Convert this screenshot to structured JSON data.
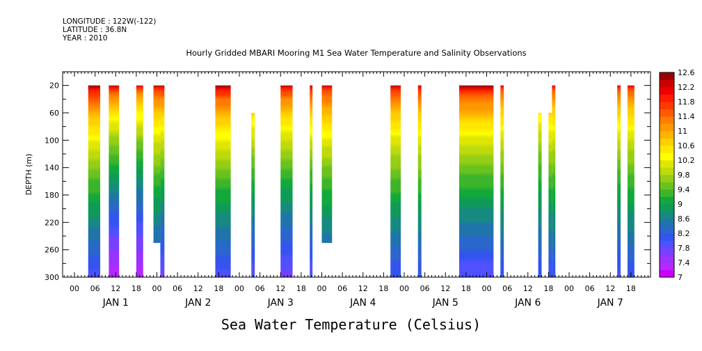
{
  "header": {
    "longitude": "LONGITUDE : 122W(-122)",
    "latitude": "LATITUDE : 36.8N",
    "year": "YEAR : 2010"
  },
  "title": "Hourly Gridded MBARI Mooring M1 Sea Water Temperature and Salinity Observations",
  "subtitle": "Sea Water Temperature (Celsius)",
  "chart_data": {
    "type": "heatmap",
    "ylabel": "DEPTH (m)",
    "ylim": [
      300,
      0
    ],
    "y_ticks": [
      20,
      60,
      100,
      140,
      180,
      220,
      260,
      300
    ],
    "x_unit": "hours since JAN 1 00:00",
    "xlim": [
      -2,
      143
    ],
    "x_tick_labels": [
      "00",
      "06",
      "12",
      "18",
      "00",
      "06",
      "12",
      "18",
      "00",
      "06",
      "12",
      "18",
      "00",
      "06",
      "12",
      "18",
      "00",
      "06",
      "12",
      "18",
      "00",
      "06",
      "12",
      "18",
      "00",
      "06",
      "12",
      "18"
    ],
    "x_day_labels": [
      "JAN  1",
      "JAN  2",
      "JAN  3",
      "JAN  4",
      "JAN  5",
      "JAN  6",
      "JAN  7"
    ],
    "colorbar": {
      "levels": [
        7,
        7.2,
        7.4,
        7.6,
        7.8,
        8,
        8.2,
        8.4,
        8.6,
        8.8,
        9,
        9.2,
        9.4,
        9.6,
        9.8,
        10,
        10.2,
        10.4,
        10.6,
        10.8,
        11,
        11.2,
        11.4,
        11.6,
        11.8,
        12,
        12.2,
        12.4,
        12.6
      ],
      "labels": [
        "12.6",
        "12.2",
        "11.8",
        "11.4",
        "11",
        "10.6",
        "10.2",
        "9.8",
        "9.4",
        "9",
        "8.6",
        "8.2",
        "7.8",
        "7.4",
        "7"
      ],
      "colors": [
        "#cc00ff",
        "#b429ff",
        "#9933ff",
        "#7a40ff",
        "#5050ff",
        "#3355ee",
        "#2a66cc",
        "#1f75aa",
        "#168a80",
        "#0f9a58",
        "#12a83c",
        "#3cb52a",
        "#6ac21e",
        "#95ce14",
        "#bdda0c",
        "#e0e604",
        "#ffff00",
        "#ffe800",
        "#ffd000",
        "#ffb400",
        "#ff9800",
        "#ff7c00",
        "#ff5a00",
        "#ff3800",
        "#ff1a00",
        "#ee0000",
        "#cc0000",
        "#990000"
      ]
    },
    "series": [
      {
        "x_start": 4,
        "x_end": 7.5,
        "depth_top": 20,
        "depth_bottom": 300,
        "t_surface": 12.6,
        "t_bottom": 7.9
      },
      {
        "x_start": 10,
        "x_end": 13,
        "depth_top": 20,
        "depth_bottom": 300,
        "t_surface": 12.3,
        "t_bottom": 7.2
      },
      {
        "x_start": 18,
        "x_end": 20,
        "depth_top": 20,
        "depth_bottom": 300,
        "t_surface": 12.1,
        "t_bottom": 7.2
      },
      {
        "x_start": 23,
        "x_end": 25,
        "depth_top": 20,
        "depth_bottom": 250,
        "t_surface": 12.3,
        "t_bottom": 7.9
      },
      {
        "x_start": 25,
        "x_end": 26.2,
        "depth_top": 20,
        "depth_bottom": 300,
        "t_surface": 12.3,
        "t_bottom": 7.7
      },
      {
        "x_start": 41,
        "x_end": 45.5,
        "depth_top": 20,
        "depth_bottom": 300,
        "t_surface": 12.5,
        "t_bottom": 7.9
      },
      {
        "x_start": 51.5,
        "x_end": 52.5,
        "depth_top": 60,
        "depth_bottom": 300,
        "t_surface": 12.1,
        "t_bottom": 7.8
      },
      {
        "x_start": 60,
        "x_end": 63.5,
        "depth_top": 20,
        "depth_bottom": 300,
        "t_surface": 12.3,
        "t_bottom": 7.7
      },
      {
        "x_start": 68.5,
        "x_end": 69.3,
        "depth_top": 20,
        "depth_bottom": 300,
        "t_surface": 12.3,
        "t_bottom": 7.8
      },
      {
        "x_start": 72,
        "x_end": 75,
        "depth_top": 20,
        "depth_bottom": 250,
        "t_surface": 12.3,
        "t_bottom": 8.0
      },
      {
        "x_start": 92,
        "x_end": 95,
        "depth_top": 20,
        "depth_bottom": 300,
        "t_surface": 12.3,
        "t_bottom": 8.0
      },
      {
        "x_start": 100,
        "x_end": 101,
        "depth_top": 20,
        "depth_bottom": 300,
        "t_surface": 12.3,
        "t_bottom": 8.0
      },
      {
        "x_start": 112,
        "x_end": 122,
        "depth_top": 20,
        "depth_bottom": 300,
        "t_surface": 12.5,
        "t_bottom": 7.8
      },
      {
        "x_start": 124,
        "x_end": 125,
        "depth_top": 20,
        "depth_bottom": 300,
        "t_surface": 12.1,
        "t_bottom": 8.0
      },
      {
        "x_start": 135,
        "x_end": 136,
        "depth_top": 60,
        "depth_bottom": 300,
        "t_surface": 11.7,
        "t_bottom": 8.0
      },
      {
        "x_start": 138,
        "x_end": 139,
        "depth_top": 60,
        "depth_bottom": 300,
        "t_surface": 12.1,
        "t_bottom": 8.0
      },
      {
        "x_start": 139,
        "x_end": 140,
        "depth_top": 20,
        "depth_bottom": 300,
        "t_surface": 12.1,
        "t_bottom": 8.0
      },
      {
        "x_start": 158,
        "x_end": 159,
        "depth_top": 20,
        "depth_bottom": 300,
        "t_surface": 12.1,
        "t_bottom": 7.9
      },
      {
        "x_start": 161,
        "x_end": 163,
        "depth_top": 20,
        "depth_bottom": 300,
        "t_surface": 12.1,
        "t_bottom": 8.0
      }
    ]
  }
}
